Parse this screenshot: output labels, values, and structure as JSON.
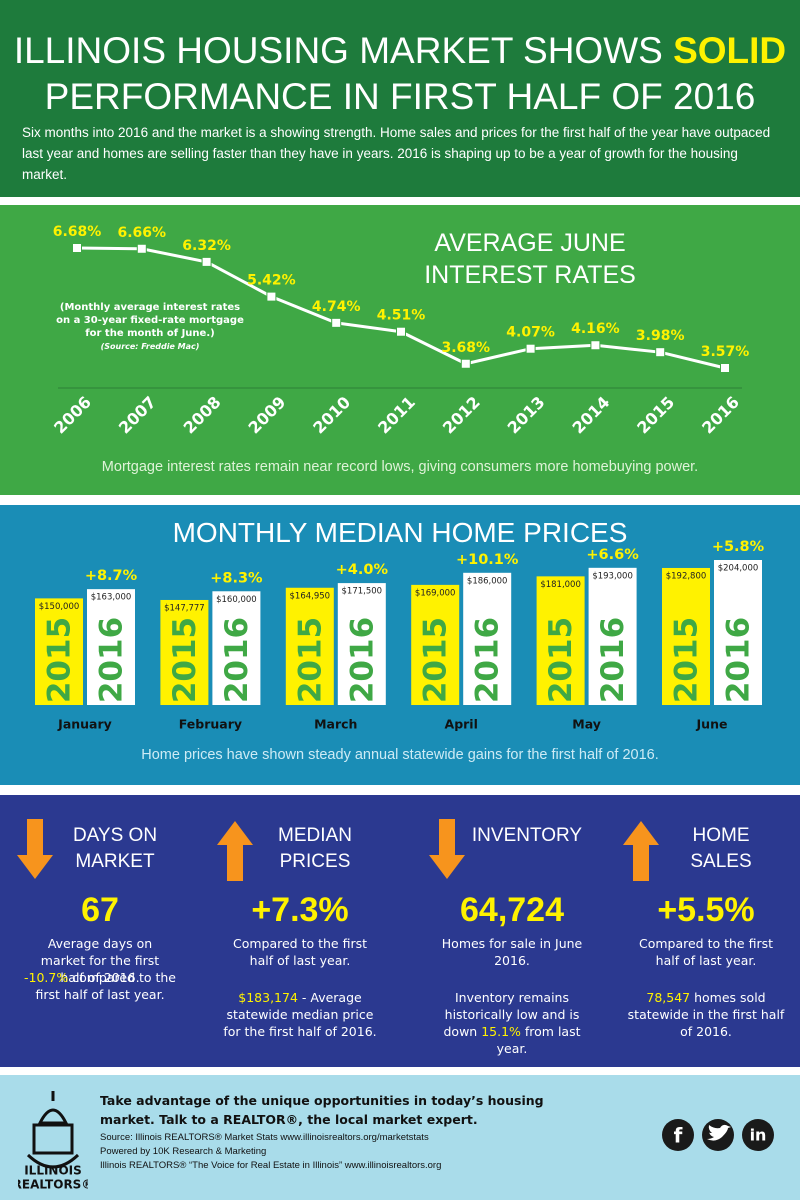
{
  "header": {
    "title": "ILLINOIS HOUSING MARKET SHOWS",
    "title_highlight": "SOLID",
    "title_end": "PERFORMANCE IN FIRST HALF OF 2016",
    "intro": "Six months into 2016 and the market is a showing strength. Home sales and prices for the first half of the year have outpaced last year and homes are selling faster than they have in years. 2016 is shaping up to be a year of growth for the housing market."
  },
  "chart_data": [
    {
      "type": "line",
      "title": "AVERAGE JUNE INTEREST RATES",
      "note": "(Monthly average interest rates on a 30-year fixed-rate mortgage for the month of June.)",
      "source": "(Source: Freddie Mac)",
      "categories": [
        "2006",
        "2007",
        "2008",
        "2009",
        "2010",
        "2011",
        "2012",
        "2013",
        "2014",
        "2015",
        "2016"
      ],
      "values": [
        6.68,
        6.66,
        6.32,
        5.42,
        4.74,
        4.51,
        3.68,
        4.07,
        4.16,
        3.98,
        3.57
      ],
      "value_labels": [
        "6.68%",
        "6.66%",
        "6.32%",
        "5.42%",
        "4.74%",
        "4.51%",
        "3.68%",
        "4.07%",
        "4.16%",
        "3.98%",
        "3.57%"
      ],
      "color": "#ffffff",
      "label_color": "#fff200",
      "caption": "Mortgage interest rates remain near record lows, giving consumers more homebuying power."
    },
    {
      "type": "bar",
      "title": "MONTHLY MEDIAN HOME PRICES",
      "categories": [
        "January",
        "February",
        "March",
        "April",
        "May",
        "June"
      ],
      "series": [
        {
          "name": "2015",
          "color": "#fff200",
          "values": [
            150000,
            147777,
            164950,
            169000,
            181000,
            192800
          ],
          "value_labels": [
            "$150,000",
            "$147,777",
            "$164,950",
            "$169,000",
            "$181,000",
            "$192,800"
          ]
        },
        {
          "name": "2016",
          "color": "#ffffff",
          "values": [
            163000,
            160000,
            171500,
            186000,
            193000,
            204000
          ],
          "value_labels": [
            "$163,000",
            "$160,000",
            "$171,500",
            "$186,000",
            "$193,000",
            "$204,000"
          ]
        }
      ],
      "annotations": [
        "+8.7%",
        "+8.3%",
        "+4.0%",
        "+10.1%",
        "+6.6%",
        "+5.8%"
      ],
      "caption": "Home prices have shown steady annual statewide gains for the first half of 2016."
    }
  ],
  "stats": [
    {
      "title": "DAYS ON MARKET",
      "value": "67",
      "text": "Average days on market for the first half of 2016.",
      "note": [
        {
          "text": "-10.7%",
          "highlight": true
        },
        {
          "text": " compared to the first half of last year."
        }
      ]
    },
    {
      "title": "MEDIAN PRICES",
      "value": "+7.3%",
      "text": "Compared to the first half of last year.",
      "note": [
        {
          "text": "$183,174",
          "highlight": true
        },
        {
          "text": " - Average statewide median price for the first half of 2016."
        }
      ]
    },
    {
      "title": "INVENTORY",
      "value": "64,724",
      "text": "Homes for sale in June 2016.",
      "note": [
        {
          "text": "Inventory remains historically low and is down "
        },
        {
          "text": "15.1%",
          "highlight": true
        },
        {
          "text": " from last year."
        }
      ]
    },
    {
      "title": "HOME SALES",
      "value": "+5.5%",
      "text": "Compared to the first half of last year.",
      "note": [
        {
          "text": "78,547",
          "highlight": true
        },
        {
          "text": " homes sold statewide in the first half of 2016."
        }
      ]
    }
  ],
  "footer": {
    "tagline": "Take advantage of the unique opportunities in today’s housing market. Talk to a REALTOR®, the local market expert.",
    "lines": [
      "Source: Illinois REALTORS® Market Stats www.illinoisrealtors.org/marketstats",
      "Powered by 10K Research & Marketing",
      "Illinois REALTORS® “The Voice for Real Estate in Illinois” www.illinoisrealtors.org"
    ],
    "logo": [
      "ILLINOIS",
      "REALTORS®"
    ],
    "social": [
      "f",
      "in"
    ]
  }
}
